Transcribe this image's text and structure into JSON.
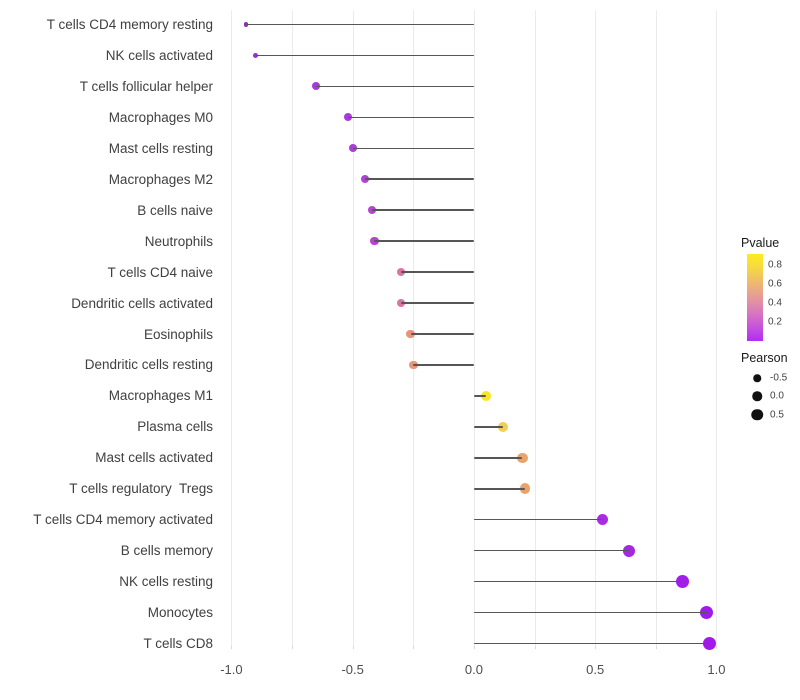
{
  "chart_data": {
    "type": "scatter",
    "subtype": "lollipop",
    "title": "",
    "xlabel": "",
    "ylabel": "",
    "xlim": [
      -1.05,
      1.05
    ],
    "grid": "vertical-only",
    "x_axis": {
      "major_ticks": [
        {
          "label": "-1.0",
          "value": -1.0
        },
        {
          "label": "-0.5",
          "value": -0.5
        },
        {
          "label": "0.0",
          "value": 0.0
        },
        {
          "label": "0.5",
          "value": 0.5
        },
        {
          "label": "1.0",
          "value": 1.0
        }
      ],
      "minor_tick_step": 0.25
    },
    "points": [
      {
        "label": "T cells CD4 memory resting",
        "pearson": -0.94,
        "pvalue": 0.001,
        "color": "#8f2cc4",
        "size": 4.2
      },
      {
        "label": "NK cells activated",
        "pearson": -0.9,
        "pvalue": 0.004,
        "color": "#9832ce",
        "size": 5.0
      },
      {
        "label": "T cells follicular helper",
        "pearson": -0.65,
        "pvalue": 0.03,
        "color": "#a43be0",
        "size": 7.9
      },
      {
        "label": "Macrophages M0",
        "pearson": -0.52,
        "pvalue": 0.08,
        "color": "#a73cdb",
        "size": 8.0
      },
      {
        "label": "Mast cells resting",
        "pearson": -0.5,
        "pvalue": 0.09,
        "color": "#a93ed8",
        "size": 8.1
      },
      {
        "label": "Macrophages M2",
        "pearson": -0.45,
        "pvalue": 0.12,
        "color": "#af44d3",
        "size": 8.2
      },
      {
        "label": "B cells naive",
        "pearson": -0.42,
        "pvalue": 0.14,
        "color": "#b346cf",
        "size": 8.3
      },
      {
        "label": "Neutrophils",
        "pearson": -0.41,
        "pvalue": 0.15,
        "color": "#b447ce",
        "size": 8.3
      },
      {
        "label": "T cells CD4 naive",
        "pearson": -0.3,
        "pvalue": 0.32,
        "color": "#da74a3",
        "size": 8.7
      },
      {
        "label": "Dendritic cells activated",
        "pearson": -0.3,
        "pvalue": 0.32,
        "color": "#da74a3",
        "size": 8.7
      },
      {
        "label": "Eosinophils",
        "pearson": -0.26,
        "pvalue": 0.44,
        "color": "#e89478",
        "size": 8.9
      },
      {
        "label": "Dendritic cells resting",
        "pearson": -0.25,
        "pvalue": 0.45,
        "color": "#e99679",
        "size": 8.9
      },
      {
        "label": "Macrophages M1",
        "pearson": 0.05,
        "pvalue": 0.85,
        "color": "#f7e623",
        "size": 10.0
      },
      {
        "label": "Plasma cells",
        "pearson": 0.12,
        "pvalue": 0.63,
        "color": "#f2ce52",
        "size": 10.3
      },
      {
        "label": "Mast cells activated",
        "pearson": 0.2,
        "pvalue": 0.46,
        "color": "#eaa36b",
        "size": 10.6
      },
      {
        "label": "T cells regulatory  Tregs",
        "pearson": 0.21,
        "pvalue": 0.45,
        "color": "#eaa26a",
        "size": 10.6
      },
      {
        "label": "T cells CD4 memory activated",
        "pearson": 0.53,
        "pvalue": 0.02,
        "color": "#a92be2",
        "size": 11.6
      },
      {
        "label": "B cells memory",
        "pearson": 0.64,
        "pvalue": 0.008,
        "color": "#a527e5",
        "size": 12.0
      },
      {
        "label": "NK cells resting",
        "pearson": 0.86,
        "pvalue": 0.001,
        "color": "#a21fe8",
        "size": 12.8
      },
      {
        "label": "Monocytes",
        "pearson": 0.96,
        "pvalue": 0.0005,
        "color": "#a01bea",
        "size": 13.2
      },
      {
        "label": "T cells CD8",
        "pearson": 0.97,
        "pvalue": 0.0005,
        "color": "#a01bea",
        "size": 13.2
      }
    ],
    "legend_pvalue": {
      "title": "Pvalue",
      "tick_labels": [
        "0.8",
        "0.6",
        "0.4",
        "0.2"
      ],
      "range": [
        0.0,
        0.92
      ],
      "gradient_top_to_bottom": [
        "#fcEB22",
        "#f7db3e",
        "#f1c163",
        "#eaa787",
        "#e18ca9",
        "#d56fc5",
        "#c44fe0",
        "#b02df2"
      ],
      "position": "right"
    },
    "legend_pearson": {
      "title": "Pearson",
      "items": [
        {
          "label": "-0.5",
          "size": 7.5
        },
        {
          "label": "0.0",
          "size": 9.5
        },
        {
          "label": "0.5",
          "size": 11.5
        }
      ],
      "dot_color": "#111111",
      "position": "right"
    },
    "style": {
      "stem_color": "#565656",
      "gridline_color": "#ebebeb",
      "axis_text_color": "#4d4d4d",
      "category_text_color": "#404040",
      "background": "#ffffff"
    }
  }
}
